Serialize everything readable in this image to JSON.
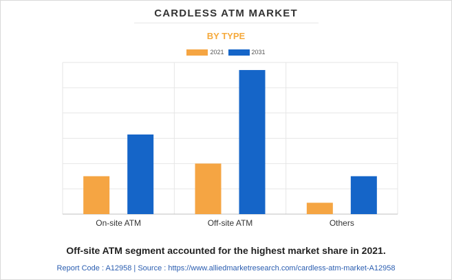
{
  "title": "CARDLESS ATM MARKET",
  "subtitle": "BY TYPE",
  "caption": "Off-site ATM segment accounted for the highest market share in 2021.",
  "footer": "Report Code : A12958  |  Source : https://www.alliedmarketresearch.com/cardless-atm-market-A12958",
  "colors": {
    "s2021": "#f5a543",
    "s2031": "#1565c8",
    "subtitle": "#f5a93b",
    "grid": "#e6e6e6"
  },
  "chart_data": {
    "type": "bar",
    "title": "CARDLESS ATM MARKET",
    "subtitle": "BY TYPE",
    "categories": [
      "On-site ATM",
      "Off-site ATM",
      "Others"
    ],
    "series": [
      {
        "name": "2021",
        "values": [
          1.5,
          2.0,
          0.45
        ]
      },
      {
        "name": "2031",
        "values": [
          3.15,
          5.7,
          1.5
        ]
      }
    ],
    "ylim": [
      0,
      6
    ],
    "grid": true,
    "legend": "top-center",
    "xlabel": "",
    "ylabel": ""
  }
}
